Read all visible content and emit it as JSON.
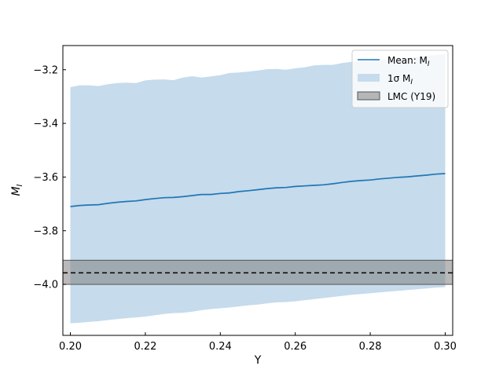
{
  "chart_data": {
    "type": "line",
    "title": "",
    "xlabel": "Y",
    "ylabel_main": "M",
    "ylabel_sub": "I",
    "xlim": [
      0.198,
      0.302
    ],
    "ylim": [
      -4.19,
      -3.11
    ],
    "xticks": [
      0.2,
      0.22,
      0.24,
      0.26,
      0.28,
      0.3
    ],
    "xtick_labels": [
      "0.20",
      "0.22",
      "0.24",
      "0.26",
      "0.28",
      "0.30"
    ],
    "yticks": [
      -4.0,
      -3.8,
      -3.6,
      -3.4,
      -3.2
    ],
    "ytick_labels": [
      "−4.0",
      "−3.8",
      "−3.6",
      "−3.4",
      "−3.2"
    ],
    "grid": false,
    "legend_position": "top-right",
    "legend": [
      {
        "kind": "line",
        "main": "Mean: M",
        "sub": "I"
      },
      {
        "kind": "band",
        "main": "1σ M",
        "sub": "I"
      },
      {
        "kind": "box",
        "main": "LMC (Y19)",
        "sub": ""
      }
    ],
    "colors": {
      "mean_line": "#1f77b4",
      "sigma_band": "#c6dbec",
      "lmc_band": "#808080",
      "lmc_line": "#000000"
    },
    "series": [
      {
        "name": "Mean: M_I",
        "kind": "line",
        "x": [
          0.2,
          0.2025,
          0.205,
          0.2075,
          0.21,
          0.2125,
          0.215,
          0.2175,
          0.22,
          0.2225,
          0.225,
          0.2275,
          0.23,
          0.2325,
          0.235,
          0.2375,
          0.24,
          0.2425,
          0.245,
          0.2475,
          0.25,
          0.2525,
          0.255,
          0.2575,
          0.26,
          0.2625,
          0.265,
          0.2675,
          0.27,
          0.2725,
          0.275,
          0.2775,
          0.28,
          0.2825,
          0.285,
          0.2875,
          0.29,
          0.2925,
          0.295,
          0.2975,
          0.3
        ],
        "y": [
          -3.71,
          -3.706,
          -3.704,
          -3.703,
          -3.698,
          -3.694,
          -3.691,
          -3.689,
          -3.684,
          -3.68,
          -3.677,
          -3.676,
          -3.673,
          -3.669,
          -3.665,
          -3.665,
          -3.661,
          -3.659,
          -3.654,
          -3.651,
          -3.647,
          -3.643,
          -3.64,
          -3.639,
          -3.635,
          -3.633,
          -3.631,
          -3.629,
          -3.625,
          -3.62,
          -3.616,
          -3.613,
          -3.611,
          -3.607,
          -3.604,
          -3.601,
          -3.599,
          -3.596,
          -3.593,
          -3.589,
          -3.587
        ]
      },
      {
        "name": "1σ M_I",
        "kind": "band",
        "x": [
          0.2,
          0.2025,
          0.205,
          0.2075,
          0.21,
          0.2125,
          0.215,
          0.2175,
          0.22,
          0.2225,
          0.225,
          0.2275,
          0.23,
          0.2325,
          0.235,
          0.2375,
          0.24,
          0.2425,
          0.245,
          0.2475,
          0.25,
          0.2525,
          0.255,
          0.2575,
          0.26,
          0.2625,
          0.265,
          0.2675,
          0.27,
          0.2725,
          0.275,
          0.2775,
          0.28,
          0.2825,
          0.285,
          0.2875,
          0.29,
          0.2925,
          0.295,
          0.2975,
          0.3
        ],
        "upper": [
          -3.265,
          -3.258,
          -3.258,
          -3.261,
          -3.254,
          -3.25,
          -3.248,
          -3.25,
          -3.24,
          -3.237,
          -3.236,
          -3.239,
          -3.229,
          -3.224,
          -3.229,
          -3.225,
          -3.22,
          -3.212,
          -3.21,
          -3.207,
          -3.203,
          -3.198,
          -3.197,
          -3.2,
          -3.195,
          -3.191,
          -3.184,
          -3.182,
          -3.182,
          -3.175,
          -3.171,
          -3.17,
          -3.167,
          -3.164,
          -3.16,
          -3.16,
          -3.156,
          -3.152,
          -3.148,
          -3.145,
          -3.142
        ],
        "lower": [
          -4.145,
          -4.143,
          -4.14,
          -4.137,
          -4.133,
          -4.129,
          -4.126,
          -4.123,
          -4.12,
          -4.115,
          -4.11,
          -4.107,
          -4.106,
          -4.102,
          -4.096,
          -4.092,
          -4.089,
          -4.086,
          -4.082,
          -4.078,
          -4.075,
          -4.071,
          -4.067,
          -4.066,
          -4.063,
          -4.059,
          -4.055,
          -4.051,
          -4.047,
          -4.043,
          -4.039,
          -4.036,
          -4.033,
          -4.03,
          -4.027,
          -4.024,
          -4.021,
          -4.018,
          -4.015,
          -4.012,
          -4.01
        ]
      },
      {
        "name": "LMC (Y19)",
        "kind": "hband",
        "y_low": -4.0,
        "y_high": -3.91,
        "y_center": -3.957
      }
    ]
  }
}
